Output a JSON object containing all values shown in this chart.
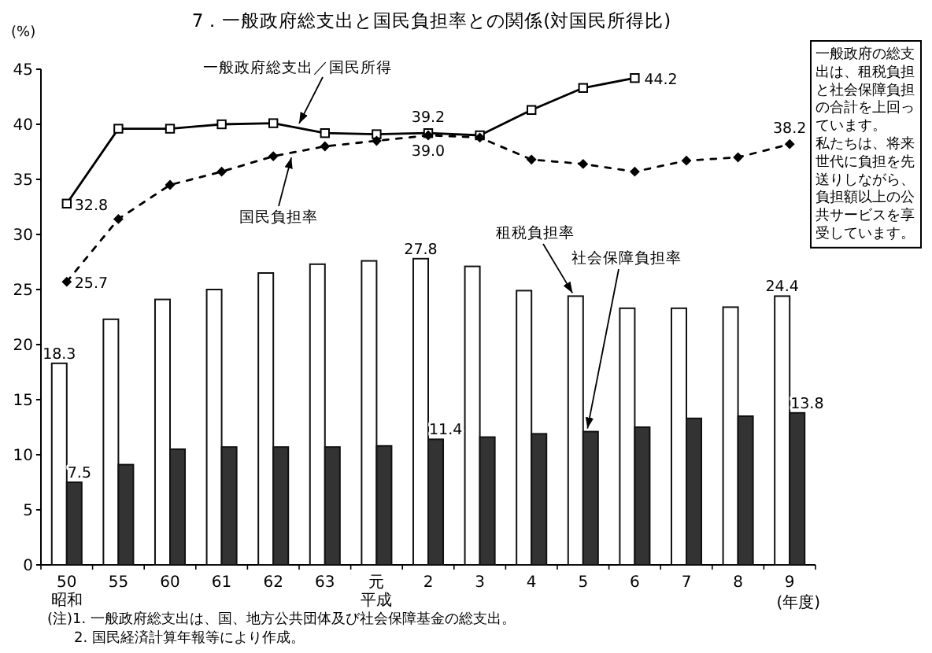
{
  "chart_data": {
    "type": "bar",
    "title": "7．一般政府総支出と国民負担率との関係(対国民所得比)",
    "xlabel": "(年度)",
    "ylabel": "(%)",
    "categories": [
      "50",
      "55",
      "60",
      "61",
      "62",
      "63",
      "元",
      "2",
      "3",
      "4",
      "5",
      "6",
      "7",
      "8",
      "9"
    ],
    "ylim": [
      0,
      45
    ],
    "yticks": [
      0,
      5,
      10,
      15,
      20,
      25,
      30,
      35,
      40,
      45
    ],
    "series": [
      {
        "name": "租税負担率",
        "color": "#ffffff",
        "values": [
          18.3,
          22.3,
          24.1,
          25.0,
          26.5,
          27.3,
          27.6,
          27.8,
          27.1,
          24.9,
          24.4,
          23.3,
          23.3,
          23.4,
          24.4
        ],
        "value_labels": [
          "18.3",
          null,
          null,
          null,
          null,
          null,
          null,
          "27.8",
          null,
          null,
          null,
          null,
          null,
          null,
          "24.4"
        ]
      },
      {
        "name": "社会保障負担率",
        "color": "#333333",
        "values": [
          7.5,
          9.1,
          10.5,
          10.7,
          10.7,
          10.7,
          10.8,
          11.4,
          11.6,
          11.9,
          12.1,
          12.5,
          13.3,
          13.5,
          13.8
        ],
        "value_labels": [
          "7.5",
          null,
          null,
          null,
          null,
          null,
          null,
          "11.4",
          null,
          null,
          null,
          null,
          null,
          null,
          "13.8"
        ]
      },
      {
        "name": "一般政府総支出／国民所得",
        "type": "line",
        "color": "#000000",
        "marker": "square",
        "line_style": "solid",
        "values": [
          32.8,
          39.6,
          39.6,
          40.0,
          40.1,
          39.2,
          39.1,
          39.2,
          39.0,
          41.3,
          43.3,
          44.2,
          null,
          null,
          null
        ],
        "value_labels": [
          "32.8",
          null,
          null,
          null,
          null,
          null,
          null,
          "39.2",
          null,
          null,
          null,
          "44.2",
          null,
          null,
          null
        ]
      },
      {
        "name": "国民負担率",
        "type": "line",
        "color": "#000000",
        "marker": "diamond",
        "line_style": "dashed",
        "values": [
          25.7,
          31.4,
          34.5,
          35.7,
          37.1,
          38.0,
          38.5,
          39.0,
          38.8,
          36.8,
          36.4,
          35.7,
          36.7,
          37.0,
          38.2
        ],
        "value_labels": [
          "25.7",
          null,
          null,
          null,
          null,
          null,
          null,
          "39.0",
          null,
          null,
          null,
          null,
          null,
          null,
          "38.2"
        ]
      }
    ],
    "annotations": [
      "一般政府の総支出は、租税負担と社会保障負担の合計を上回っています。私たちは、将来世代に負担を先送りしながら、負担額以上の公共サービスを享受しています。",
      "(注)1. 一般政府総支出は、国、地方公共団体及び社会保障基金の総支出。",
      "2. 国民経済計算年報等により作成。",
      "昭和",
      "平成"
    ]
  }
}
